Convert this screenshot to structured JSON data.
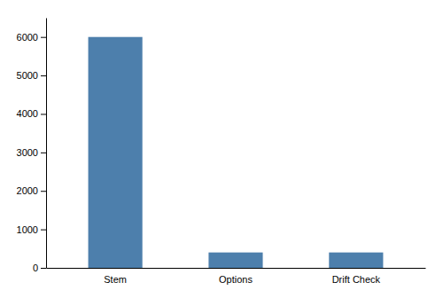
{
  "chart_data": {
    "type": "bar",
    "categories": [
      "Stem",
      "Options",
      "Drift Check"
    ],
    "values": [
      6000,
      400,
      400
    ],
    "color": "#4d7fac",
    "ylim": [
      0,
      6500
    ],
    "yticks": [
      0,
      1000,
      2000,
      3000,
      4000,
      5000,
      6000
    ],
    "grid": false
  }
}
